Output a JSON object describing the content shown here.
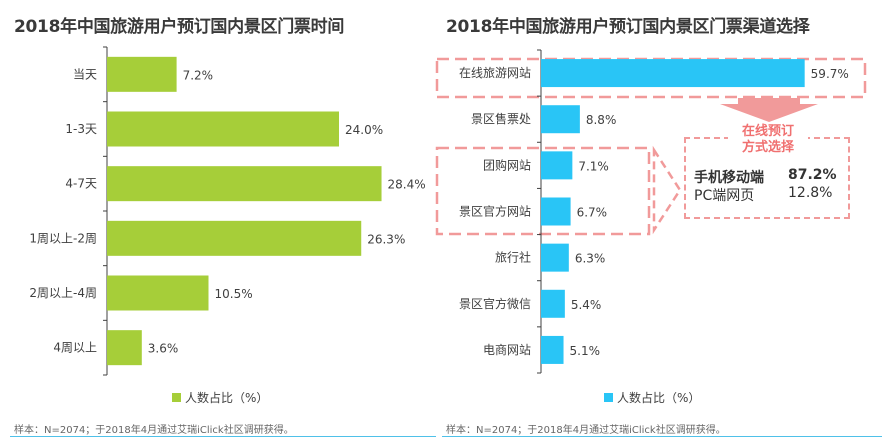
{
  "left_title": "2018年中国旅游用户预订国内景区门票时间",
  "right_title": "2018年中国旅游用户预订国内景区门票渠道选择",
  "footer_text": "样本：N=2074；于2018年4月通过艾瑞iClick社区调研获得。",
  "callout": {
    "title_line1": "在线预订",
    "title_line2": "方式选择",
    "rows": [
      {
        "label": "手机移动端",
        "value": "87.2%"
      },
      {
        "label": "PC端网页",
        "value": "12.8%"
      }
    ]
  },
  "colors": {
    "left_bar": "#a6ce39",
    "right_bar": "#29c5f6",
    "highlight": "#f19a9a"
  },
  "chart_data": [
    {
      "type": "bar",
      "orientation": "horizontal",
      "title": "2018年中国旅游用户预订国内景区门票时间",
      "categories": [
        "当天",
        "1-3天",
        "4-7天",
        "1周以上-2周",
        "2周以上-4周",
        "4周以上"
      ],
      "series": [
        {
          "name": "人数占比（%）",
          "values": [
            7.2,
            24.0,
            28.4,
            26.3,
            10.5,
            3.6
          ]
        }
      ],
      "data_labels": [
        "7.2%",
        "24.0%",
        "28.4%",
        "26.3%",
        "10.5%",
        "3.6%"
      ],
      "xlim": [
        0,
        30
      ],
      "legend": "bottom"
    },
    {
      "type": "bar",
      "orientation": "horizontal",
      "title": "2018年中国旅游用户预订国内景区门票渠道选择",
      "categories": [
        "在线旅游网站",
        "景区售票处",
        "团购网站",
        "景区官方网站",
        "旅行社",
        "景区官方微信",
        "电商网站"
      ],
      "series": [
        {
          "name": "人数占比（%）",
          "values": [
            59.7,
            8.8,
            7.1,
            6.7,
            6.3,
            5.4,
            5.1
          ]
        }
      ],
      "data_labels": [
        "59.7%",
        "8.8%",
        "7.1%",
        "6.7%",
        "6.3%",
        "5.4%",
        "5.1%"
      ],
      "xlim": [
        0,
        60
      ],
      "legend": "bottom",
      "highlighted_categories": [
        "在线旅游网站",
        "团购网站",
        "景区官方网站"
      ]
    }
  ]
}
